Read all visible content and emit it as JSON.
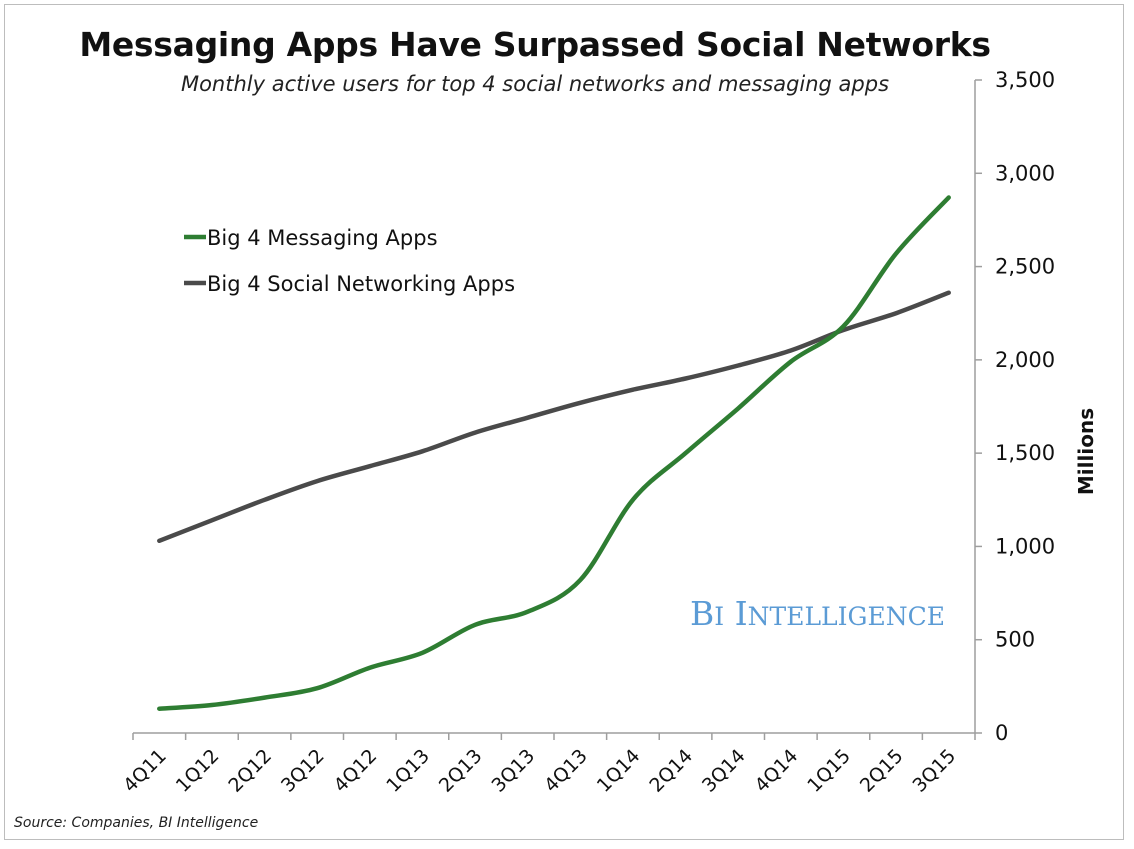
{
  "title": "Messaging Apps Have Surpassed Social Networks",
  "subtitle": "Monthly active users for top 4 social networks and messaging apps",
  "source": "Source: Companies, BI Intelligence",
  "watermark": "BI Intelligence",
  "chart_data": {
    "type": "line",
    "title": "Messaging Apps Have Surpassed Social Networks",
    "subtitle": "Monthly active users for top 4 social networks and messaging apps",
    "xlabel": "",
    "ylabel": "Millions",
    "ylim": [
      0,
      3500
    ],
    "yticks": [
      0,
      500,
      1000,
      1500,
      2000,
      2500,
      3000,
      3500
    ],
    "ytick_labels": [
      "0",
      "500",
      "1,000",
      "1,500",
      "2,000",
      "2,500",
      "3,000",
      "3,500"
    ],
    "y_axis_side": "right",
    "grid": false,
    "legend_position": "upper-left",
    "categories": [
      "4Q11",
      "1Q12",
      "2Q12",
      "3Q12",
      "4Q12",
      "1Q13",
      "2Q13",
      "3Q13",
      "4Q13",
      "1Q14",
      "2Q14",
      "3Q14",
      "4Q14",
      "1Q15",
      "2Q15",
      "3Q15"
    ],
    "series": [
      {
        "name": "Big 4 Messaging Apps",
        "color": "#2e7d32",
        "values": [
          130,
          150,
          190,
          240,
          350,
          430,
          580,
          650,
          820,
          1250,
          1500,
          1740,
          1990,
          2180,
          2570,
          2870
        ]
      },
      {
        "name": "Big 4 Social Networking Apps",
        "color": "#4a4a4a",
        "values": [
          1030,
          1140,
          1250,
          1350,
          1430,
          1510,
          1610,
          1690,
          1770,
          1840,
          1900,
          1970,
          2050,
          2160,
          2250,
          2360
        ]
      }
    ]
  }
}
